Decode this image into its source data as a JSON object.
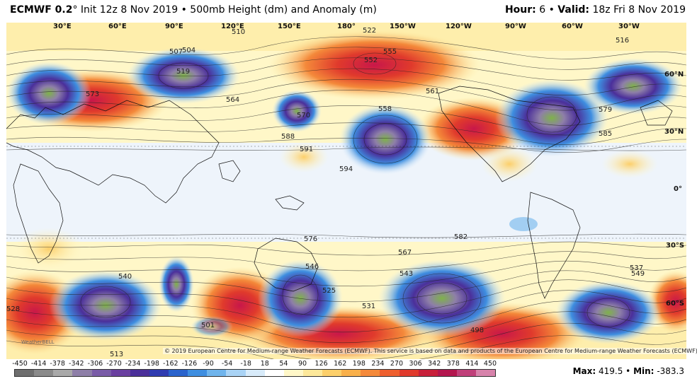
{
  "header": {
    "model": "ECMWF 0.2",
    "degree": "°",
    "init_text": "Init 12z 8 Nov 2019",
    "bullet": "•",
    "product": "500mb Height (dm) and Anomaly (m)",
    "hour_label": "Hour:",
    "hour_value": "6",
    "valid_label": "Valid:",
    "valid_value": "18z Fri 8 Nov 2019"
  },
  "map": {
    "lon_labels": [
      "30°E",
      "60°E",
      "90°E",
      "120°E",
      "150°E",
      "180°",
      "150°W",
      "120°W",
      "90°W",
      "60°W",
      "30°W"
    ],
    "lat_labels": [
      "60°N",
      "30°N",
      "0°",
      "30°S",
      "60°S"
    ],
    "contour_labels": [
      "507",
      "510",
      "504",
      "519",
      "573",
      "555",
      "552",
      "522",
      "558",
      "585",
      "591",
      "588",
      "582",
      "576",
      "579",
      "570",
      "516",
      "567",
      "543",
      "540",
      "537",
      "531",
      "525",
      "528",
      "513",
      "501",
      "498",
      "546",
      "549",
      "561",
      "564",
      "594"
    ],
    "copyright": "© 2019 European Centre for Medium-range Weather Forecasts (ECMWF). This service is based on data and products of the European Centre for Medium-range Weather Forecasts (ECMWF).",
    "logo_text": "WeatherBELL"
  },
  "colorbar": {
    "ticks": [
      "-450",
      "-414",
      "-378",
      "-342",
      "-306",
      "-270",
      "-234",
      "-198",
      "-162",
      "-126",
      "-90",
      "-54",
      "-18",
      "18",
      "54",
      "90",
      "126",
      "162",
      "198",
      "234",
      "270",
      "306",
      "342",
      "378",
      "414",
      "450"
    ],
    "colors": [
      "#6e6e6e",
      "#8a8a8a",
      "#a9a9a9",
      "#8e7fa8",
      "#7a5ca8",
      "#6a3fa0",
      "#4b2f9a",
      "#2f3bb0",
      "#2a63cc",
      "#3e8ee0",
      "#6fb4ec",
      "#a9d3f5",
      "#d8ebfa",
      "#ffffff",
      "#fff7c8",
      "#fde89a",
      "#fccf6a",
      "#f9b04a",
      "#f4893a",
      "#ee5f2e",
      "#e03a2c",
      "#c8203a",
      "#b3164e",
      "#c0407a",
      "#d783ab",
      "#eab7d0"
    ]
  },
  "stats": {
    "max_label": "Max:",
    "max_value": "419.5",
    "min_label": "Min:",
    "min_value": "-383.3"
  }
}
